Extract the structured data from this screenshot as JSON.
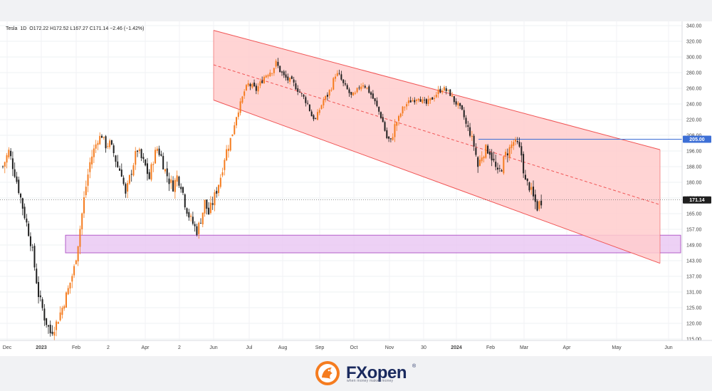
{
  "header": {
    "symbol": "Tesla",
    "interval": "1D",
    "ohlc": "O172.22  H172.52  L167.27  C171.14  −2.46 (−1.42%)"
  },
  "price_tags": {
    "resistance": "205.00",
    "last": "171.14"
  },
  "brand": {
    "name": "FXopen",
    "reg": "®",
    "tagline": "when money makes money"
  },
  "colors": {
    "up": "#f57c1f",
    "down": "#1f1f1f",
    "channel_fill": "#ffcccc",
    "channel_line": "#f05454",
    "support_zone": "#e8c6f2",
    "support_border": "#b35ec9",
    "resistance_line": "#3d6fd6"
  },
  "chart_data": {
    "type": "candlestick",
    "title": "Tesla, 1D",
    "ylim": [
      113,
      342
    ],
    "y_ticks": [
      "340.00",
      "320.00",
      "300.00",
      "280.00",
      "260.00",
      "240.00",
      "220.00",
      "208.00",
      "196.00",
      "188.00",
      "180.00",
      "172.00",
      "165.00",
      "157.00",
      "149.00",
      "143.00",
      "137.00",
      "131.00",
      "125.00",
      "120.00",
      "115.00"
    ],
    "x_ticks": [
      {
        "label": "Dec",
        "bold": false
      },
      {
        "label": "2023",
        "bold": true
      },
      {
        "label": "Feb",
        "bold": false
      },
      {
        "label": "2",
        "bold": false
      },
      {
        "label": "Apr",
        "bold": false
      },
      {
        "label": "2",
        "bold": false
      },
      {
        "label": "Jun",
        "bold": false
      },
      {
        "label": "Jul",
        "bold": false
      },
      {
        "label": "Aug",
        "bold": false
      },
      {
        "label": "Sep",
        "bold": false
      },
      {
        "label": "Oct",
        "bold": false
      },
      {
        "label": "Nov",
        "bold": false
      },
      {
        "label": "30",
        "bold": false
      },
      {
        "label": "2024",
        "bold": true
      },
      {
        "label": "Feb",
        "bold": false
      },
      {
        "label": "Mar",
        "bold": false
      },
      {
        "label": "Apr",
        "bold": false
      },
      {
        "label": "May",
        "bold": false
      },
      {
        "label": "Jun",
        "bold": false
      }
    ],
    "last_price": 171.14,
    "resistance": 205.0,
    "support_zone": [
      146,
      154
    ],
    "channel": {
      "upper": [
        334,
        197
      ],
      "middle": [
        290,
        169
      ],
      "lower": [
        245,
        142
      ]
    },
    "price_path": [
      [
        0,
        188
      ],
      [
        3,
        196
      ],
      [
        6,
        185
      ],
      [
        9,
        172
      ],
      [
        12,
        160
      ],
      [
        15,
        146
      ],
      [
        18,
        130
      ],
      [
        21,
        122
      ],
      [
        24,
        117
      ],
      [
        27,
        120
      ],
      [
        30,
        125
      ],
      [
        33,
        132
      ],
      [
        36,
        140
      ],
      [
        38,
        150
      ],
      [
        40,
        165
      ],
      [
        42,
        178
      ],
      [
        44,
        190
      ],
      [
        46,
        197
      ],
      [
        48,
        205
      ],
      [
        50,
        208
      ],
      [
        52,
        200
      ],
      [
        54,
        202
      ],
      [
        56,
        195
      ],
      [
        58,
        188
      ],
      [
        60,
        185
      ],
      [
        62,
        173
      ],
      [
        64,
        182
      ],
      [
        66,
        190
      ],
      [
        68,
        197
      ],
      [
        70,
        192
      ],
      [
        72,
        188
      ],
      [
        74,
        182
      ],
      [
        76,
        192
      ],
      [
        78,
        198
      ],
      [
        80,
        193
      ],
      [
        82,
        186
      ],
      [
        84,
        181
      ],
      [
        86,
        178
      ],
      [
        88,
        183
      ],
      [
        90,
        179
      ],
      [
        92,
        170
      ],
      [
        94,
        164
      ],
      [
        96,
        160
      ],
      [
        98,
        156
      ],
      [
        100,
        162
      ],
      [
        102,
        170
      ],
      [
        104,
        165
      ],
      [
        106,
        170
      ],
      [
        108,
        176
      ],
      [
        110,
        183
      ],
      [
        112,
        193
      ],
      [
        114,
        200
      ],
      [
        116,
        210
      ],
      [
        118,
        225
      ],
      [
        120,
        240
      ],
      [
        122,
        256
      ],
      [
        124,
        265
      ],
      [
        126,
        262
      ],
      [
        128,
        258
      ],
      [
        130,
        266
      ],
      [
        132,
        275
      ],
      [
        134,
        280
      ],
      [
        136,
        283
      ],
      [
        138,
        292
      ],
      [
        140,
        283
      ],
      [
        142,
        275
      ],
      [
        144,
        271
      ],
      [
        146,
        268
      ],
      [
        148,
        262
      ],
      [
        150,
        255
      ],
      [
        152,
        248
      ],
      [
        154,
        240
      ],
      [
        156,
        225
      ],
      [
        158,
        220
      ],
      [
        160,
        233
      ],
      [
        162,
        245
      ],
      [
        164,
        251
      ],
      [
        166,
        262
      ],
      [
        168,
        278
      ],
      [
        170,
        276
      ],
      [
        172,
        265
      ],
      [
        174,
        258
      ],
      [
        176,
        250
      ],
      [
        178,
        252
      ],
      [
        180,
        262
      ],
      [
        182,
        266
      ],
      [
        184,
        260
      ],
      [
        186,
        252
      ],
      [
        188,
        242
      ],
      [
        190,
        230
      ],
      [
        192,
        218
      ],
      [
        194,
        206
      ],
      [
        196,
        203
      ],
      [
        198,
        215
      ],
      [
        200,
        222
      ],
      [
        202,
        234
      ],
      [
        204,
        240
      ],
      [
        206,
        244
      ],
      [
        208,
        246
      ],
      [
        210,
        250
      ],
      [
        212,
        243
      ],
      [
        214,
        240
      ],
      [
        216,
        245
      ],
      [
        218,
        250
      ],
      [
        220,
        256
      ],
      [
        222,
        260
      ],
      [
        224,
        257
      ],
      [
        226,
        253
      ],
      [
        228,
        244
      ],
      [
        230,
        238
      ],
      [
        232,
        230
      ],
      [
        234,
        216
      ],
      [
        236,
        210
      ],
      [
        238,
        200
      ],
      [
        240,
        188
      ],
      [
        242,
        194
      ],
      [
        244,
        198
      ],
      [
        246,
        196
      ],
      [
        248,
        190
      ],
      [
        250,
        184
      ],
      [
        252,
        188
      ],
      [
        254,
        194
      ],
      [
        256,
        198
      ],
      [
        258,
        203
      ],
      [
        260,
        201
      ],
      [
        262,
        194
      ],
      [
        264,
        180
      ],
      [
        266,
        178
      ],
      [
        268,
        172
      ],
      [
        270,
        168
      ],
      [
        272,
        171
      ]
    ]
  }
}
